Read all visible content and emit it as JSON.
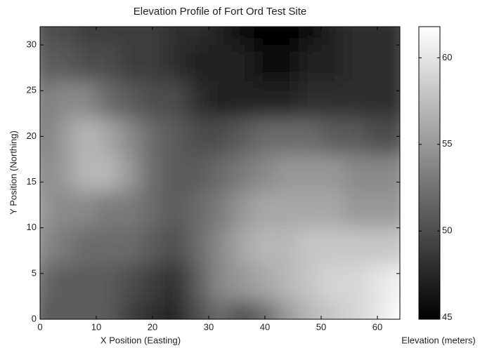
{
  "chart_data": {
    "type": "heatmap",
    "title": "Elevation Profile of Fort Ord Test Site",
    "xlabel": "X Position (Easting)",
    "ylabel": "Y Position (Northing)",
    "colorbar_label": "Elevation (meters)",
    "colormap": "gray",
    "x": [
      0,
      4,
      8,
      12,
      16,
      20,
      24,
      28,
      32,
      36,
      40,
      44,
      48,
      52,
      56,
      60,
      64
    ],
    "y": [
      32,
      28,
      24,
      20,
      16,
      12,
      8,
      4,
      0
    ],
    "z": [
      [
        50,
        50,
        49,
        49,
        49,
        49,
        48,
        48,
        47,
        46,
        45,
        45,
        46,
        47,
        48,
        48,
        48
      ],
      [
        51,
        51,
        50,
        50,
        49,
        49,
        48,
        47,
        47,
        47,
        46,
        46,
        47,
        47,
        48,
        48,
        48
      ],
      [
        53,
        54,
        54,
        52,
        51,
        50,
        50,
        48,
        47,
        47,
        47,
        47,
        48,
        48,
        48,
        48,
        48
      ],
      [
        53,
        55,
        57,
        56,
        54,
        52,
        51,
        50,
        50,
        51,
        52,
        52,
        52,
        51,
        51,
        50,
        50
      ],
      [
        54,
        55,
        57,
        57,
        55,
        52,
        51,
        51,
        52,
        53,
        54,
        55,
        55,
        55,
        54,
        54,
        54
      ],
      [
        55,
        54,
        54,
        53,
        53,
        52,
        51,
        52,
        53,
        55,
        56,
        56,
        56,
        56,
        55,
        55,
        55
      ],
      [
        54,
        53,
        52,
        52,
        52,
        51,
        50,
        52,
        54,
        56,
        57,
        57,
        58,
        58,
        58,
        58,
        58
      ],
      [
        52,
        51,
        51,
        51,
        50,
        49,
        48,
        51,
        54,
        55,
        56,
        57,
        58,
        59,
        59,
        60,
        61
      ],
      [
        51,
        51,
        51,
        51,
        49,
        48,
        47,
        50,
        52,
        50,
        52,
        55,
        57,
        58,
        59,
        60,
        62
      ]
    ],
    "xlim": [
      0,
      64
    ],
    "ylim": [
      0,
      32
    ],
    "xticks": [
      0,
      10,
      20,
      30,
      40,
      50,
      60
    ],
    "yticks": [
      0,
      5,
      10,
      15,
      20,
      25,
      30
    ],
    "clim": [
      44.9,
      61.8
    ],
    "cticks": [
      45,
      50,
      55,
      60
    ]
  }
}
